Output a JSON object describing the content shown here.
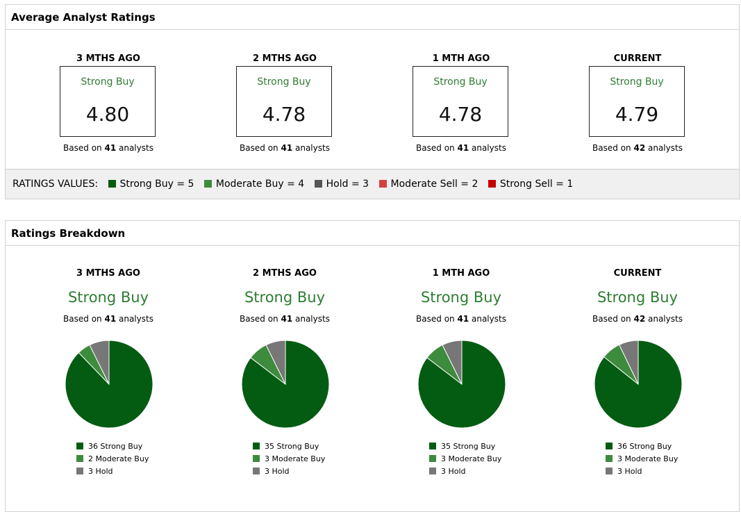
{
  "avg_panel": {
    "title": "Average Analyst Ratings",
    "cards": [
      {
        "period": "3 MTHS AGO",
        "rating": "Strong Buy",
        "score": "4.80",
        "based_prefix": "Based on ",
        "analysts": "41",
        "based_suffix": " analysts"
      },
      {
        "period": "2 MTHS AGO",
        "rating": "Strong Buy",
        "score": "4.78",
        "based_prefix": "Based on ",
        "analysts": "41",
        "based_suffix": " analysts"
      },
      {
        "period": "1 MTH AGO",
        "rating": "Strong Buy",
        "score": "4.78",
        "based_prefix": "Based on ",
        "analysts": "41",
        "based_suffix": " analysts"
      },
      {
        "period": "CURRENT",
        "rating": "Strong Buy",
        "score": "4.79",
        "based_prefix": "Based on ",
        "analysts": "42",
        "based_suffix": " analysts"
      }
    ],
    "values_label": "RATINGS VALUES:",
    "values": [
      {
        "label": "Strong Buy = 5",
        "color": "#045c13"
      },
      {
        "label": "Moderate Buy = 4",
        "color": "#3d8b3d"
      },
      {
        "label": "Hold = 3",
        "color": "#555555"
      },
      {
        "label": "Moderate Sell = 2",
        "color": "#d84040"
      },
      {
        "label": "Strong Sell = 1",
        "color": "#c40000"
      }
    ]
  },
  "breakdown_panel": {
    "title": "Ratings Breakdown"
  },
  "chart_data": [
    {
      "type": "pie",
      "title": "3 MTHS AGO",
      "subtitle": "Strong Buy",
      "based_prefix": "Based on ",
      "analysts": "41",
      "based_suffix": " analysts",
      "slices": [
        {
          "label": "Strong Buy",
          "value": 36,
          "text": "36 Strong Buy",
          "color": "#045c13"
        },
        {
          "label": "Moderate Buy",
          "value": 2,
          "text": "2 Moderate Buy",
          "color": "#3d8b3d"
        },
        {
          "label": "Hold",
          "value": 3,
          "text": "3 Hold",
          "color": "#777777"
        }
      ]
    },
    {
      "type": "pie",
      "title": "2 MTHS AGO",
      "subtitle": "Strong Buy",
      "based_prefix": "Based on ",
      "analysts": "41",
      "based_suffix": " analysts",
      "slices": [
        {
          "label": "Strong Buy",
          "value": 35,
          "text": "35 Strong Buy",
          "color": "#045c13"
        },
        {
          "label": "Moderate Buy",
          "value": 3,
          "text": "3 Moderate Buy",
          "color": "#3d8b3d"
        },
        {
          "label": "Hold",
          "value": 3,
          "text": "3 Hold",
          "color": "#777777"
        }
      ]
    },
    {
      "type": "pie",
      "title": "1 MTH AGO",
      "subtitle": "Strong Buy",
      "based_prefix": "Based on ",
      "analysts": "41",
      "based_suffix": " analysts",
      "slices": [
        {
          "label": "Strong Buy",
          "value": 35,
          "text": "35 Strong Buy",
          "color": "#045c13"
        },
        {
          "label": "Moderate Buy",
          "value": 3,
          "text": "3 Moderate Buy",
          "color": "#3d8b3d"
        },
        {
          "label": "Hold",
          "value": 3,
          "text": "3 Hold",
          "color": "#777777"
        }
      ]
    },
    {
      "type": "pie",
      "title": "CURRENT",
      "subtitle": "Strong Buy",
      "based_prefix": "Based on ",
      "analysts": "42",
      "based_suffix": " analysts",
      "slices": [
        {
          "label": "Strong Buy",
          "value": 36,
          "text": "36 Strong Buy",
          "color": "#045c13"
        },
        {
          "label": "Moderate Buy",
          "value": 3,
          "text": "3 Moderate Buy",
          "color": "#3d8b3d"
        },
        {
          "label": "Hold",
          "value": 3,
          "text": "3 Hold",
          "color": "#777777"
        }
      ]
    }
  ]
}
